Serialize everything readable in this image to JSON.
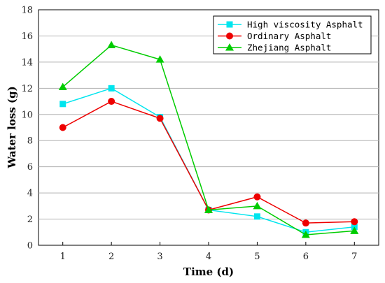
{
  "chart_data": {
    "type": "line",
    "xlabel": "Time (d)",
    "ylabel": "Water loss (g)",
    "x": [
      1,
      2,
      3,
      4,
      5,
      6,
      7
    ],
    "xticks": [
      "1",
      "2",
      "3",
      "4",
      "5",
      "6",
      "7"
    ],
    "xlim": [
      0.5,
      7.5
    ],
    "ylim": [
      0,
      18
    ],
    "yticks": [
      "0",
      "2",
      "4",
      "6",
      "8",
      "10",
      "12",
      "14",
      "16",
      "18"
    ],
    "grid": "horizontal",
    "legend_position": "top-right",
    "series": [
      {
        "name": "High viscosity Asphalt",
        "values": [
          10.8,
          12.0,
          9.8,
          2.7,
          2.2,
          1.0,
          1.4
        ],
        "color": "#00e5ee",
        "marker": "square"
      },
      {
        "name": "Ordinary Asphalt",
        "values": [
          9.0,
          11.0,
          9.7,
          2.7,
          3.7,
          1.7,
          1.8
        ],
        "color": "#ee0000",
        "marker": "circle"
      },
      {
        "name": "Zhejiang Asphalt",
        "values": [
          12.1,
          15.3,
          14.2,
          2.7,
          3.0,
          0.8,
          1.1
        ],
        "color": "#00cc00",
        "marker": "triangle"
      }
    ]
  }
}
